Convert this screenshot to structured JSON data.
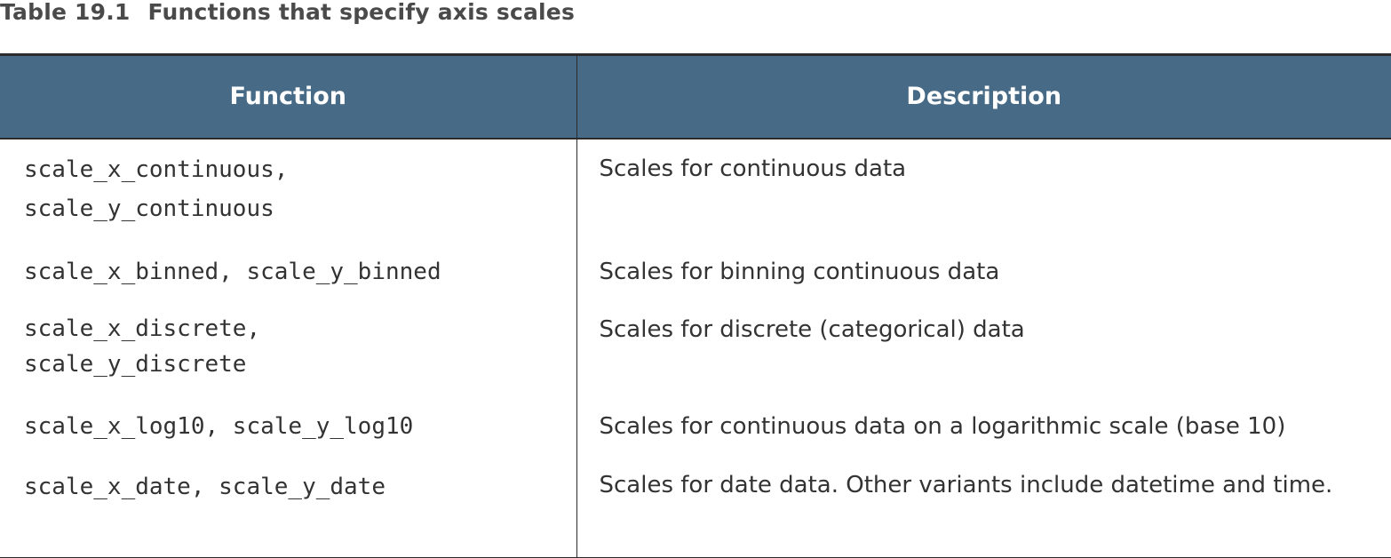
{
  "caption": {
    "number": "Table 19.1",
    "title": "Functions that specify axis scales"
  },
  "table": {
    "headers": [
      "Function",
      "Description"
    ],
    "rows": [
      {
        "function_lines": [
          "scale_x_continuous,",
          "scale_y_continuous"
        ],
        "description": "Scales for continuous data"
      },
      {
        "function_lines": [
          "scale_x_binned, scale_y_binned"
        ],
        "description": "Scales for binning continuous data"
      },
      {
        "function_lines": [
          "scale_x_discrete,",
          "scale_y_discrete"
        ],
        "description": "Scales for discrete (categorical) data"
      },
      {
        "function_lines": [
          "scale_x_log10, scale_y_log10"
        ],
        "description": "Scales for continuous data on a logarithmic scale (base 10)"
      },
      {
        "function_lines": [
          "scale_x_date, scale_y_date"
        ],
        "description": "Scales for date data. Other variants include datetime and time."
      }
    ]
  }
}
